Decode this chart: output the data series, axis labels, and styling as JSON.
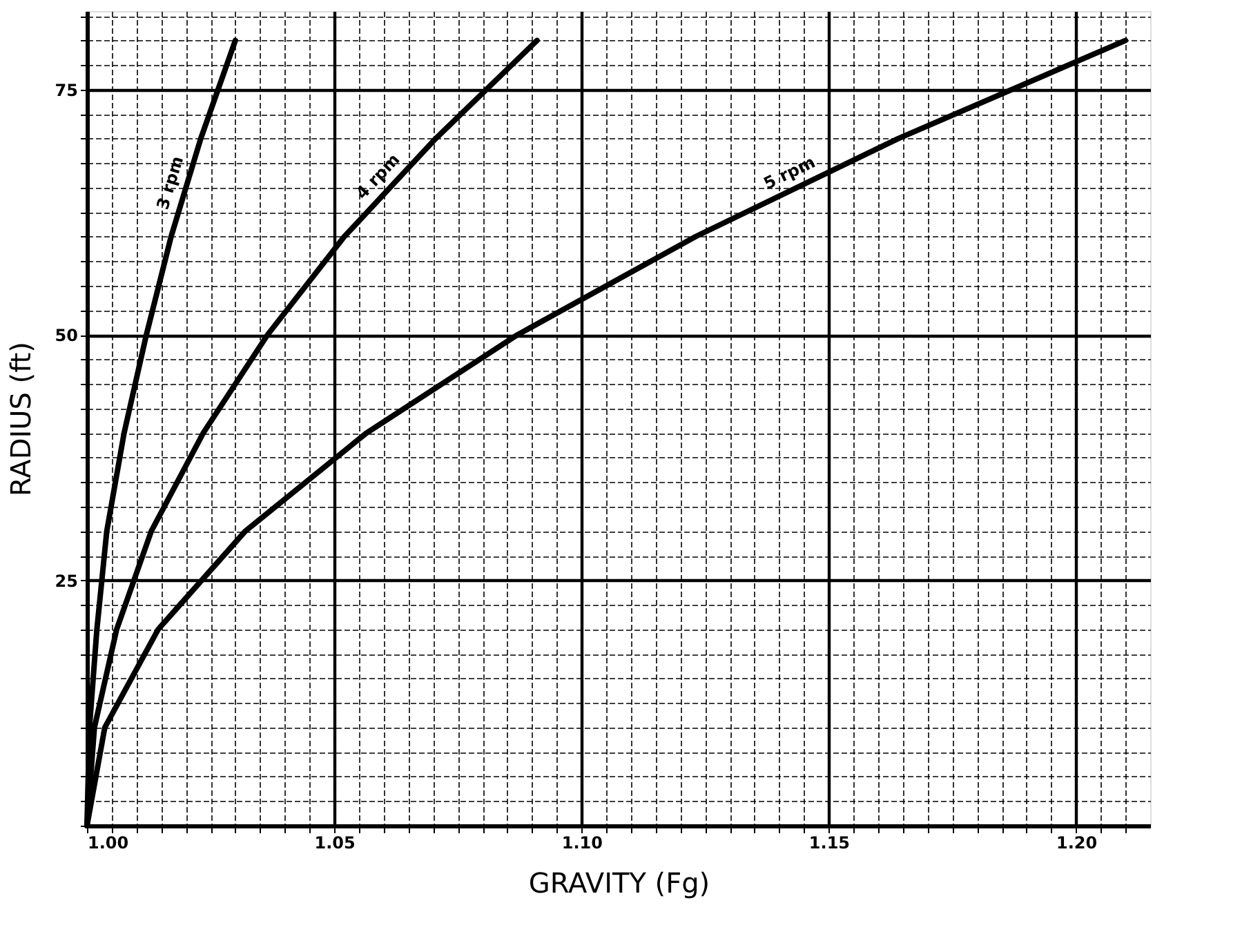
{
  "chart_data": {
    "type": "line",
    "xlabel": "GRAVITY (Fg)",
    "ylabel": "RADIUS (ft)",
    "xlim": [
      1.0,
      1.215
    ],
    "ylim": [
      0,
      83
    ],
    "xticks": [
      {
        "value": 1.0,
        "label": "1.00"
      },
      {
        "value": 1.005,
        "label": null
      },
      {
        "value": 1.01,
        "label": null
      },
      {
        "value": 1.015,
        "label": null
      },
      {
        "value": 1.02,
        "label": null
      },
      {
        "value": 1.025,
        "label": null
      },
      {
        "value": 1.03,
        "label": null
      },
      {
        "value": 1.035,
        "label": null
      },
      {
        "value": 1.04,
        "label": null
      },
      {
        "value": 1.045,
        "label": null
      },
      {
        "value": 1.05,
        "label": "1.05"
      },
      {
        "value": 1.055,
        "label": null
      },
      {
        "value": 1.06,
        "label": null
      },
      {
        "value": 1.065,
        "label": null
      },
      {
        "value": 1.07,
        "label": null
      },
      {
        "value": 1.075,
        "label": null
      },
      {
        "value": 1.08,
        "label": null
      },
      {
        "value": 1.085,
        "label": null
      },
      {
        "value": 1.09,
        "label": null
      },
      {
        "value": 1.095,
        "label": null
      },
      {
        "value": 1.1,
        "label": "1.10"
      },
      {
        "value": 1.105,
        "label": null
      },
      {
        "value": 1.11,
        "label": null
      },
      {
        "value": 1.115,
        "label": null
      },
      {
        "value": 1.12,
        "label": null
      },
      {
        "value": 1.125,
        "label": null
      },
      {
        "value": 1.13,
        "label": null
      },
      {
        "value": 1.135,
        "label": null
      },
      {
        "value": 1.14,
        "label": null
      },
      {
        "value": 1.145,
        "label": null
      },
      {
        "value": 1.15,
        "label": "1.15"
      },
      {
        "value": 1.155,
        "label": null
      },
      {
        "value": 1.16,
        "label": null
      },
      {
        "value": 1.165,
        "label": null
      },
      {
        "value": 1.17,
        "label": null
      },
      {
        "value": 1.175,
        "label": null
      },
      {
        "value": 1.18,
        "label": null
      },
      {
        "value": 1.185,
        "label": null
      },
      {
        "value": 1.19,
        "label": null
      },
      {
        "value": 1.195,
        "label": null
      },
      {
        "value": 1.2,
        "label": "1.20"
      },
      {
        "value": 1.205,
        "label": null
      },
      {
        "value": 1.21,
        "label": null
      }
    ],
    "yticks": [
      {
        "value": 0,
        "label": null
      },
      {
        "value": 2.5,
        "label": null
      },
      {
        "value": 5,
        "label": null
      },
      {
        "value": 7.5,
        "label": null
      },
      {
        "value": 10,
        "label": null
      },
      {
        "value": 12.5,
        "label": null
      },
      {
        "value": 15,
        "label": null
      },
      {
        "value": 17.5,
        "label": null
      },
      {
        "value": 20,
        "label": null
      },
      {
        "value": 22.5,
        "label": null
      },
      25,
      {
        "value": 27.5,
        "label": null
      },
      {
        "value": 30,
        "label": null
      },
      {
        "value": 32.5,
        "label": null
      },
      {
        "value": 35,
        "label": null
      },
      {
        "value": 37.5,
        "label": null
      },
      {
        "value": 40,
        "label": null
      },
      {
        "value": 42.5,
        "label": null
      },
      {
        "value": 45,
        "label": null
      },
      {
        "value": 47.5,
        "label": null
      },
      50,
      {
        "value": 52.5,
        "label": null
      },
      {
        "value": 55,
        "label": null
      },
      {
        "value": 57.5,
        "label": null
      },
      {
        "value": 60,
        "label": null
      },
      {
        "value": 62.5,
        "label": null
      },
      {
        "value": 65,
        "label": null
      },
      {
        "value": 67.5,
        "label": null
      },
      {
        "value": 70,
        "label": null
      },
      {
        "value": 72.5,
        "label": null
      },
      75,
      {
        "value": 77.5,
        "label": null
      },
      {
        "value": 80,
        "label": null
      },
      {
        "value": 82.5,
        "label": null
      }
    ],
    "grid": true,
    "marker": "none",
    "line_style": "solid",
    "series": [
      {
        "name": "3 rpm",
        "color": "#000000",
        "x": [
          1.0,
          1.0005,
          1.002,
          1.004,
          1.0075,
          1.012,
          1.017,
          1.023,
          1.03
        ],
        "values": [
          0,
          10,
          20,
          30,
          40,
          50,
          60,
          70,
          80
        ]
      },
      {
        "name": "4 rpm",
        "color": "#000000",
        "x": [
          1.0,
          1.0015,
          1.006,
          1.013,
          1.0235,
          1.0365,
          1.052,
          1.0705,
          1.091
        ],
        "values": [
          0,
          10,
          20,
          30,
          40,
          50,
          60,
          70,
          80
        ]
      },
      {
        "name": "5 rpm",
        "color": "#000000",
        "x": [
          1.0,
          1.0036,
          1.0144,
          1.032,
          1.0565,
          1.087,
          1.123,
          1.164,
          1.21
        ],
        "values": [
          0,
          10,
          20,
          30,
          40,
          50,
          60,
          70,
          80
        ]
      }
    ]
  }
}
